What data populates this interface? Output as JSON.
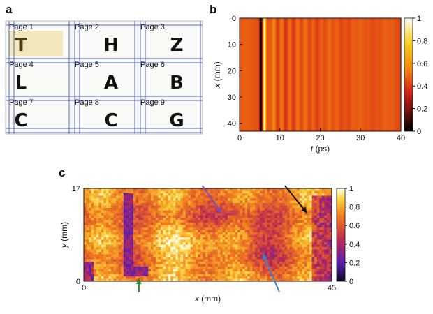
{
  "panels": {
    "a": "a",
    "b": "b",
    "c": "c"
  },
  "photo": {
    "pages": [
      {
        "label": "Page 1",
        "letter": "T",
        "highlight": true
      },
      {
        "label": "Page 2",
        "letter": "H",
        "highlight": false
      },
      {
        "label": "Page 3",
        "letter": "Z",
        "highlight": false
      },
      {
        "label": "Page 4",
        "letter": "L",
        "highlight": false
      },
      {
        "label": "Page 5",
        "letter": "A",
        "highlight": false
      },
      {
        "label": "Page 6",
        "letter": "B",
        "highlight": false
      },
      {
        "label": "Page 7",
        "letter": "C",
        "highlight": false
      },
      {
        "label": "Page 8",
        "letter": "C",
        "highlight": false
      },
      {
        "label": "Page 9",
        "letter": "G",
        "highlight": false
      }
    ],
    "grid_color": "#3a4fb0",
    "highlight_color": "#f3e7bd"
  },
  "chart_data": [
    {
      "id": "b",
      "type": "heatmap",
      "xlabel_var": "t",
      "xlabel_unit": "(ps)",
      "ylabel_var": "x",
      "ylabel_unit": "(mm)",
      "xlim": [
        0,
        40
      ],
      "ylim": [
        0,
        43
      ],
      "y_inverted": true,
      "xticks": [
        "0",
        "10",
        "20",
        "30",
        "40"
      ],
      "yticks": [
        "0",
        "10",
        "20",
        "30",
        "40"
      ],
      "colorbar": {
        "ticks": [
          "0",
          "0.2",
          "0.4",
          "0.6",
          "0.8",
          "1"
        ],
        "range": [
          0,
          1
        ]
      },
      "features": {
        "dark_band_t": 5.3,
        "bright_band_t": 6.2,
        "ripple_start_t": 8,
        "background_value": 0.45
      }
    },
    {
      "id": "c",
      "type": "heatmap",
      "xlabel_var": "x",
      "xlabel_unit": "(mm)",
      "ylabel_var": "y",
      "ylabel_unit": "(mm)",
      "xlim": [
        0,
        45
      ],
      "ylim": [
        0,
        17
      ],
      "xticks": [
        "0",
        "45"
      ],
      "yticks": [
        "0",
        "17"
      ],
      "colorbar": {
        "ticks": [
          "0",
          "0.2",
          "0.4",
          "0.6",
          "0.8",
          "1"
        ],
        "range": [
          0,
          1
        ]
      },
      "arrows": [
        {
          "color": "#7a4fb5",
          "from": [
            21.5,
            17.5
          ],
          "to": [
            25,
            12.5
          ]
        },
        {
          "color": "#111111",
          "from": [
            36.5,
            17.5
          ],
          "to": [
            40.5,
            12.5
          ]
        },
        {
          "color": "#3a85c4",
          "from": [
            35.5,
            -2
          ],
          "to": [
            32.5,
            5
          ]
        },
        {
          "color": "#2e8b2e",
          "from": [
            10,
            -2
          ],
          "to": [
            10,
            0.5
          ]
        }
      ]
    }
  ]
}
